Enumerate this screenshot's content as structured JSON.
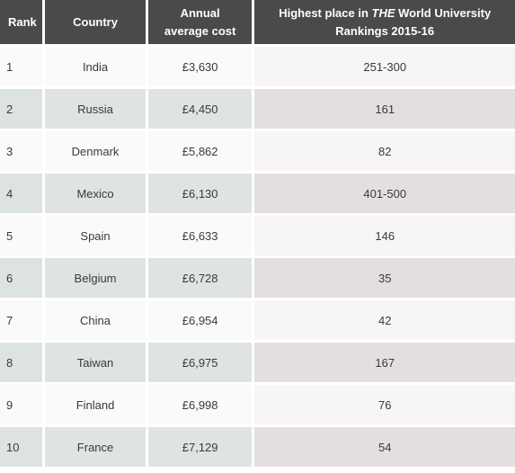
{
  "headers": {
    "rank": "Rank",
    "country": "Country",
    "cost_line1": "Annual",
    "cost_line2": "average cost",
    "place_pre": "Highest place in ",
    "place_em": "THE",
    "place_post": " World University",
    "place_line2": "Rankings 2015-16"
  },
  "rows": [
    {
      "rank": "1",
      "country": "India",
      "cost": "£3,630",
      "place": "251-300"
    },
    {
      "rank": "2",
      "country": "Russia",
      "cost": "£4,450",
      "place": "161"
    },
    {
      "rank": "3",
      "country": "Denmark",
      "cost": "£5,862",
      "place": "82"
    },
    {
      "rank": "4",
      "country": "Mexico",
      "cost": "£6,130",
      "place": "401-500"
    },
    {
      "rank": "5",
      "country": "Spain",
      "cost": "£6,633",
      "place": "146"
    },
    {
      "rank": "6",
      "country": "Belgium",
      "cost": "£6,728",
      "place": "35"
    },
    {
      "rank": "7",
      "country": "China",
      "cost": "£6,954",
      "place": "42"
    },
    {
      "rank": "8",
      "country": "Taiwan",
      "cost": "£6,975",
      "place": "167"
    },
    {
      "rank": "9",
      "country": "Finland",
      "cost": "£6,998",
      "place": "76"
    },
    {
      "rank": "10",
      "country": "France",
      "cost": "£7,129",
      "place": "54"
    }
  ],
  "colors": {
    "header_bg": "#4a4a4a",
    "header_text": "#ffffff",
    "row_light": "#fafafa",
    "row_dark": "#dfe3e3",
    "row_dark_place": "#e4dee1"
  }
}
